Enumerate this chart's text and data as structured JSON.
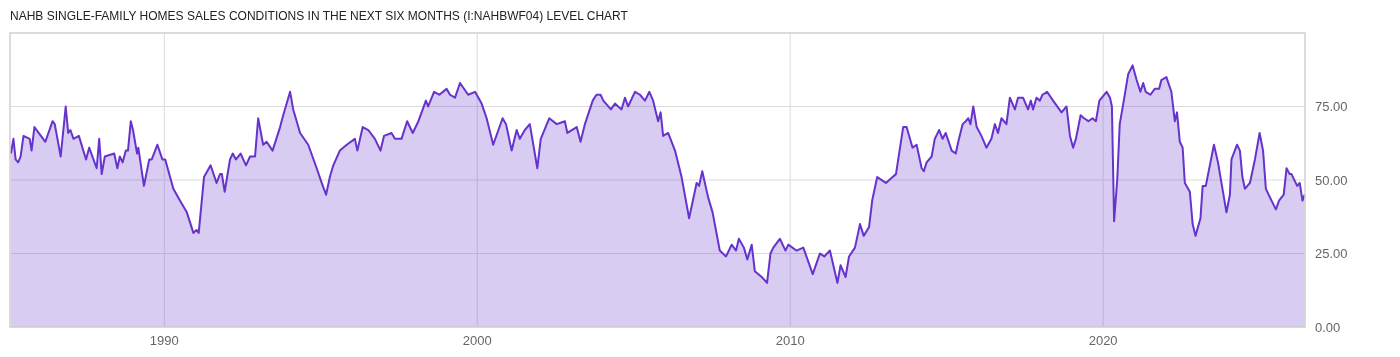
{
  "chart_data": {
    "type": "area",
    "title": "NAHB SINGLE-FAMILY HOMES SALES CONDITIONS IN THE NEXT SIX MONTHS (I:NAHBWF04) LEVEL CHART",
    "x": [
      1985.1,
      1985.18,
      1985.25,
      1985.33,
      1985.41,
      1985.5,
      1985.7,
      1985.76,
      1985.85,
      1986.2,
      1986.43,
      1986.5,
      1986.69,
      1986.85,
      1986.93,
      1987.0,
      1987.1,
      1987.27,
      1987.5,
      1987.6,
      1987.84,
      1987.92,
      1988.0,
      1988.1,
      1988.4,
      1988.5,
      1988.58,
      1988.67,
      1988.77,
      1988.84,
      1988.93,
      1989.0,
      1989.13,
      1989.17,
      1989.35,
      1989.52,
      1989.6,
      1989.78,
      1989.94,
      1990.03,
      1990.29,
      1990.5,
      1990.72,
      1990.93,
      1991.03,
      1991.1,
      1991.27,
      1991.48,
      1991.67,
      1991.78,
      1991.84,
      1991.93,
      1992.1,
      1992.19,
      1992.29,
      1992.44,
      1992.61,
      1992.74,
      1992.9,
      1993.0,
      1993.16,
      1993.27,
      1993.46,
      1993.7,
      1993.8,
      1994.02,
      1994.12,
      1994.34,
      1994.6,
      1994.87,
      1995.03,
      1995.17,
      1995.29,
      1995.4,
      1995.61,
      1995.83,
      1996.09,
      1996.17,
      1996.34,
      1996.52,
      1996.73,
      1996.91,
      1997.02,
      1997.26,
      1997.37,
      1997.58,
      1997.76,
      1997.94,
      1998.12,
      1998.36,
      1998.43,
      1998.62,
      1998.79,
      1999.02,
      1999.13,
      1999.29,
      1999.45,
      1999.71,
      1999.93,
      2000.14,
      2000.3,
      2000.51,
      2000.81,
      2000.92,
      2001.1,
      2001.26,
      2001.36,
      2001.52,
      2001.68,
      2001.92,
      2002.03,
      2002.3,
      2002.54,
      2002.8,
      2002.88,
      2003.18,
      2003.3,
      2003.44,
      2003.69,
      2003.81,
      2003.94,
      2004.03,
      2004.27,
      2004.4,
      2004.61,
      2004.72,
      2004.82,
      2005.04,
      2005.2,
      2005.36,
      2005.5,
      2005.62,
      2005.78,
      2005.86,
      2005.94,
      2006.1,
      2006.32,
      2006.53,
      2006.77,
      2007.01,
      2007.09,
      2007.19,
      2007.38,
      2007.52,
      2007.75,
      2007.95,
      2008.13,
      2008.27,
      2008.36,
      2008.52,
      2008.63,
      2008.77,
      2008.87,
      2009.09,
      2009.26,
      2009.37,
      2009.46,
      2009.67,
      2009.85,
      2009.94,
      2010.2,
      2010.42,
      2010.72,
      2010.95,
      2011.09,
      2011.27,
      2011.51,
      2011.61,
      2011.77,
      2011.88,
      2012.07,
      2012.23,
      2012.35,
      2012.52,
      2012.62,
      2012.78,
      2013.06,
      2013.27,
      2013.38,
      2013.61,
      2013.72,
      2013.91,
      2014.04,
      2014.2,
      2014.27,
      2014.36,
      2014.52,
      2014.62,
      2014.76,
      2014.87,
      2014.97,
      2015.16,
      2015.29,
      2015.37,
      2015.51,
      2015.61,
      2015.69,
      2015.76,
      2015.85,
      2015.96,
      2016.11,
      2016.27,
      2016.43,
      2016.54,
      2016.64,
      2016.75,
      2016.91,
      2017.02,
      2017.18,
      2017.28,
      2017.44,
      2017.6,
      2017.69,
      2017.76,
      2017.87,
      2017.98,
      2018.06,
      2018.21,
      2018.4,
      2018.67,
      2018.83,
      2018.94,
      2019.04,
      2019.13,
      2019.28,
      2019.39,
      2019.53,
      2019.66,
      2019.77,
      2019.88,
      2020.11,
      2020.22,
      2020.28,
      2020.35,
      2020.45,
      2020.53,
      2020.66,
      2020.8,
      2020.94,
      2021.07,
      2021.19,
      2021.28,
      2021.36,
      2021.51,
      2021.65,
      2021.79,
      2021.86,
      2022.02,
      2022.18,
      2022.29,
      2022.36,
      2022.45,
      2022.54,
      2022.61,
      2022.77,
      2022.86,
      2022.95,
      2023.11,
      2023.18,
      2023.28,
      2023.54,
      2023.67,
      2023.94,
      2024.05,
      2024.1,
      2024.28,
      2024.37,
      2024.45,
      2024.53,
      2024.69,
      2024.85,
      2025.0,
      2025.11,
      2025.2,
      2025.38,
      2025.52,
      2025.62,
      2025.77,
      2025.86,
      2025.96,
      2026.02,
      2026.2,
      2026.28,
      2026.37,
      2026.44
    ],
    "series": [
      {
        "color": "#6633cc",
        "values": [
          59,
          64,
          57,
          56,
          58,
          65,
          64,
          60,
          68,
          63,
          70,
          69,
          58,
          75,
          66,
          67,
          64,
          65,
          57,
          61,
          54,
          64,
          52,
          58,
          59,
          54,
          58,
          56,
          60,
          60,
          70,
          67,
          59,
          61,
          48,
          57,
          57,
          62,
          57,
          57,
          47,
          43,
          39,
          32,
          33,
          32,
          51,
          55,
          49,
          52,
          52,
          46,
          57,
          59,
          57,
          59,
          55,
          58,
          58,
          71,
          62,
          63,
          60,
          68,
          72,
          80,
          74,
          66,
          62,
          54,
          49,
          45,
          51,
          55,
          60,
          62,
          64,
          60,
          68,
          67,
          64,
          60,
          65,
          66,
          64,
          64,
          70,
          66,
          70,
          77,
          75,
          80,
          79,
          81,
          79,
          78,
          83,
          79,
          80,
          76,
          71,
          62,
          71,
          69,
          60,
          67,
          64,
          67,
          69,
          54,
          64,
          71,
          69,
          70,
          66,
          68,
          63,
          69,
          77,
          79,
          79,
          77,
          74,
          76,
          74,
          78,
          75,
          80,
          79,
          77,
          80,
          77,
          70,
          73,
          65,
          66,
          60,
          51,
          37,
          49,
          48,
          53,
          44,
          39,
          26,
          24,
          28,
          26,
          30,
          27,
          23,
          28,
          19,
          17,
          15,
          25,
          27,
          30,
          26,
          28,
          26,
          27,
          18,
          25,
          24,
          26,
          15,
          21,
          17,
          24,
          27,
          35,
          31,
          34,
          43,
          51,
          49,
          51,
          52,
          68,
          68,
          61,
          62,
          54,
          53,
          56,
          58,
          64,
          67,
          64,
          66,
          60,
          59,
          63,
          69,
          70,
          71,
          69,
          75,
          68,
          65,
          61,
          64,
          69,
          66,
          71,
          69,
          78,
          74,
          78,
          78,
          74,
          77,
          74,
          78,
          77,
          79,
          80,
          77,
          73,
          75,
          65,
          61,
          64,
          72,
          71,
          70,
          71,
          70,
          77,
          80,
          78,
          75,
          36,
          50,
          69,
          77,
          86,
          89,
          84,
          80,
          83,
          80,
          79,
          81,
          81,
          84,
          85,
          80,
          70,
          73,
          63,
          61,
          49,
          46,
          35,
          31,
          37,
          48,
          48,
          62,
          56,
          39,
          45,
          57,
          62,
          60,
          51,
          47,
          49,
          57,
          66,
          60,
          47,
          43,
          40,
          43,
          45,
          54,
          52,
          52,
          48,
          49,
          43,
          45
        ]
      }
    ],
    "xlim": [
      1985.07,
      2026.45
    ],
    "ylim": [
      0,
      100
    ],
    "xticks": [
      1990,
      2000,
      2010,
      2020
    ],
    "yticks": [
      {
        "value": 0,
        "label": "0.00"
      },
      {
        "value": 25,
        "label": "25.00"
      },
      {
        "value": 50,
        "label": "50.00"
      },
      {
        "value": 75,
        "label": "75.00"
      }
    ],
    "grid": true
  }
}
